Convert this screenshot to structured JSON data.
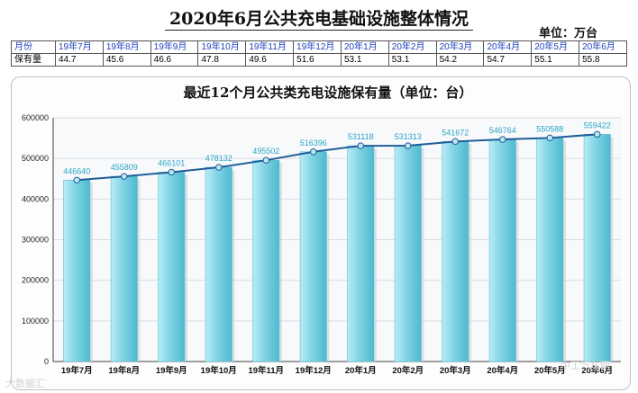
{
  "page": {
    "title": "2020年6月公共充电基础设施整体情况",
    "unit": "单位：万台"
  },
  "table": {
    "header_label": "月份",
    "row_label": "保有量",
    "months": [
      "19年7月",
      "19年8月",
      "19年9月",
      "19年10月",
      "19年11月",
      "19年12月",
      "20年1月",
      "20年2月",
      "20年3月",
      "20年4月",
      "20年5月",
      "20年6月"
    ],
    "values": [
      "44.7",
      "45.6",
      "46.6",
      "47.8",
      "49.6",
      "51.6",
      "53.1",
      "53.1",
      "54.2",
      "54.7",
      "55.1",
      "55.8"
    ]
  },
  "watermarks": {
    "bottom_left": "大数据汇",
    "bottom_right": "中工汽车网"
  },
  "chart_data": {
    "type": "bar",
    "title": "最近12个月公共类充电设施保有量（单位：台）",
    "categories": [
      "19年7月",
      "19年8月",
      "19年9月",
      "19年10月",
      "19年11月",
      "19年12月",
      "20年1月",
      "20年2月",
      "20年3月",
      "20年4月",
      "20年5月",
      "20年6月"
    ],
    "series": [
      {
        "values": [
          446640,
          455809,
          466101,
          478132,
          495502,
          516396,
          531118,
          531313,
          541672,
          546764,
          550588,
          559422
        ],
        "color": "#7fd3e3"
      }
    ],
    "overlay_line": {
      "color": "#1f5d99",
      "marker_color": "#bfe8f2"
    },
    "ylim": [
      0,
      600000
    ],
    "yticks": [
      0,
      100000,
      200000,
      300000,
      400000,
      500000,
      600000
    ],
    "ytick_labels": [
      "0",
      "100000",
      "200000",
      "300000",
      "400000",
      "500000",
      "600000"
    ],
    "grid": true,
    "data_label_color": "#2aa6c4"
  }
}
